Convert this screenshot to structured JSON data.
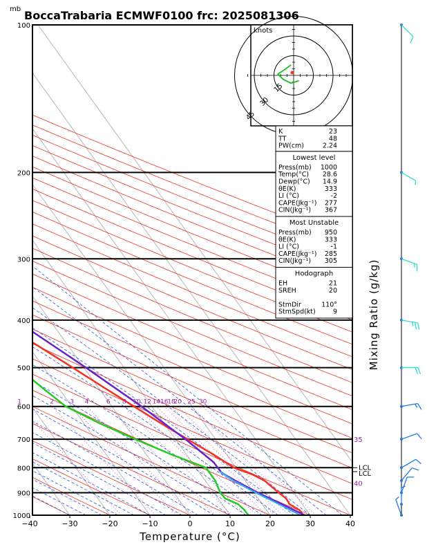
{
  "header": {
    "unit": "mb",
    "title": "BoccaTrabaria ECMWF0100 frc: 2025081306"
  },
  "chart_data": {
    "type": "skew-t",
    "xlabel": "Temperature (°C)",
    "ylabel_right": "Mixing Ratio (g/kg)",
    "x_ticks": [
      -40,
      -30,
      -20,
      -10,
      0,
      10,
      20,
      30,
      40
    ],
    "pressure_levels": [
      100,
      200,
      300,
      400,
      500,
      600,
      700,
      800,
      900,
      1000
    ],
    "mixing_ratio_labels": [
      "1",
      "2",
      "3",
      "4",
      "6",
      "8",
      "10",
      "12",
      "14",
      "16",
      "18",
      "20",
      "25",
      "30"
    ],
    "theta_e_labels": [
      "35",
      "40"
    ],
    "lcl_labels": [
      "LCL",
      "LCL"
    ],
    "series": [
      {
        "id": "temperature",
        "color": "#ee3322",
        "points": [
          [
            1000,
            28.3
          ],
          [
            975,
            28.2
          ],
          [
            950,
            26.8
          ],
          [
            925,
            27.0
          ],
          [
            900,
            26.2
          ],
          [
            875,
            25.5
          ],
          [
            850,
            24.8
          ],
          [
            825,
            22.8
          ],
          [
            800,
            19.5
          ],
          [
            750,
            16.6
          ],
          [
            700,
            13.0
          ],
          [
            650,
            9.3
          ],
          [
            600,
            5.5
          ],
          [
            550,
            1.5
          ],
          [
            500,
            -2.8
          ],
          [
            450,
            -7.7
          ],
          [
            400,
            -13.5
          ],
          [
            370,
            -16.2
          ],
          [
            350,
            -19.2
          ],
          [
            300,
            -26.5
          ],
          [
            250,
            -37.5
          ],
          [
            220,
            -43.0
          ],
          [
            200,
            -49.0
          ],
          [
            150,
            -60.0
          ],
          [
            100,
            -66.0
          ]
        ]
      },
      {
        "id": "dewpoint",
        "color": "#22cc22",
        "points": [
          [
            1000,
            14.6
          ],
          [
            975,
            14.5
          ],
          [
            950,
            14.0
          ],
          [
            925,
            11.8
          ],
          [
            900,
            11.6
          ],
          [
            850,
            12.5
          ],
          [
            800,
            12.5
          ],
          [
            750,
            6.0
          ],
          [
            700,
            0.0
          ],
          [
            650,
            -6.0
          ],
          [
            600,
            -11.5
          ],
          [
            550,
            -14.0
          ],
          [
            500,
            -16.5
          ],
          [
            450,
            -21.0
          ],
          [
            400,
            -26.0
          ],
          [
            350,
            -33.0
          ],
          [
            300,
            -42.0
          ],
          [
            250,
            -56.0
          ],
          [
            200,
            -70.0
          ],
          [
            150,
            -82.0
          ],
          [
            100,
            -93.0
          ]
        ]
      },
      {
        "id": "parcel",
        "color": "#6622cc",
        "points": [
          [
            1000,
            28.6
          ],
          [
            950,
            25.0
          ],
          [
            900,
            21.0
          ],
          [
            850,
            17.5
          ],
          [
            820,
            15.5
          ],
          [
            780,
            15.4
          ],
          [
            700,
            12.5
          ],
          [
            600,
            7.4
          ],
          [
            500,
            0.5
          ],
          [
            400,
            -8.6
          ],
          [
            300,
            -23.0
          ],
          [
            250,
            -33.6
          ],
          [
            200,
            -46.5
          ],
          [
            150,
            -62.5
          ],
          [
            115,
            -77.0
          ]
        ]
      }
    ],
    "hodograph": {
      "unit_label": "knots",
      "ring_labels": [
        "15",
        "30",
        "45"
      ],
      "storm_motion_direction_deg": 110,
      "storm_motion_speed_kt": 9
    },
    "wind_barbs": [
      {
        "p": 100,
        "dir": 315,
        "spd": 10
      },
      {
        "p": 200,
        "dir": 300,
        "spd": 5
      },
      {
        "p": 300,
        "dir": 290,
        "spd": 15
      },
      {
        "p": 400,
        "dir": 280,
        "spd": 25
      },
      {
        "p": 500,
        "dir": 270,
        "spd": 20
      },
      {
        "p": 600,
        "dir": 260,
        "spd": 15
      },
      {
        "p": 700,
        "dir": 250,
        "spd": 10
      },
      {
        "p": 800,
        "dir": 240,
        "spd": 10
      },
      {
        "p": 850,
        "dir": 220,
        "spd": 10
      },
      {
        "p": 900,
        "dir": 200,
        "spd": 10
      },
      {
        "p": 950,
        "dir": 180,
        "spd": 5
      },
      {
        "p": 1000,
        "dir": 160,
        "spd": 5
      }
    ],
    "indices": [
      {
        "rows": [
          [
            "K",
            "23"
          ],
          [
            "TT",
            "48"
          ],
          [
            "PW(cm)",
            "2.24"
          ]
        ]
      },
      {
        "heading": "Lowest level",
        "rows": [
          [
            "Press(mb)",
            "1000"
          ],
          [
            "Temp(°C)",
            "28.6"
          ],
          [
            "Dewp(°C)",
            "14.9"
          ],
          [
            "θE(K)",
            "333"
          ],
          [
            "LI (°C)",
            "-2"
          ],
          [
            "CAPE(Jkg⁻¹)",
            "277"
          ],
          [
            "CIN(Jkg⁻¹)",
            "367"
          ]
        ]
      },
      {
        "heading": "Most Unstable",
        "rows": [
          [
            "Press(mb)",
            "950"
          ],
          [
            "θE(K)",
            "333"
          ],
          [
            "LI (°C)",
            "-1"
          ],
          [
            "CAPE(Jkg⁻¹)",
            "285"
          ],
          [
            "CIN(Jkg⁻¹)",
            "305"
          ]
        ]
      },
      {
        "heading": "Hodograph",
        "rows": [
          [
            "EH",
            "21"
          ],
          [
            "SREH",
            "20"
          ],
          [
            "",
            ""
          ],
          [
            "StmDir",
            "110°"
          ],
          [
            "StmSpd(kt)",
            "9"
          ]
        ]
      }
    ]
  }
}
